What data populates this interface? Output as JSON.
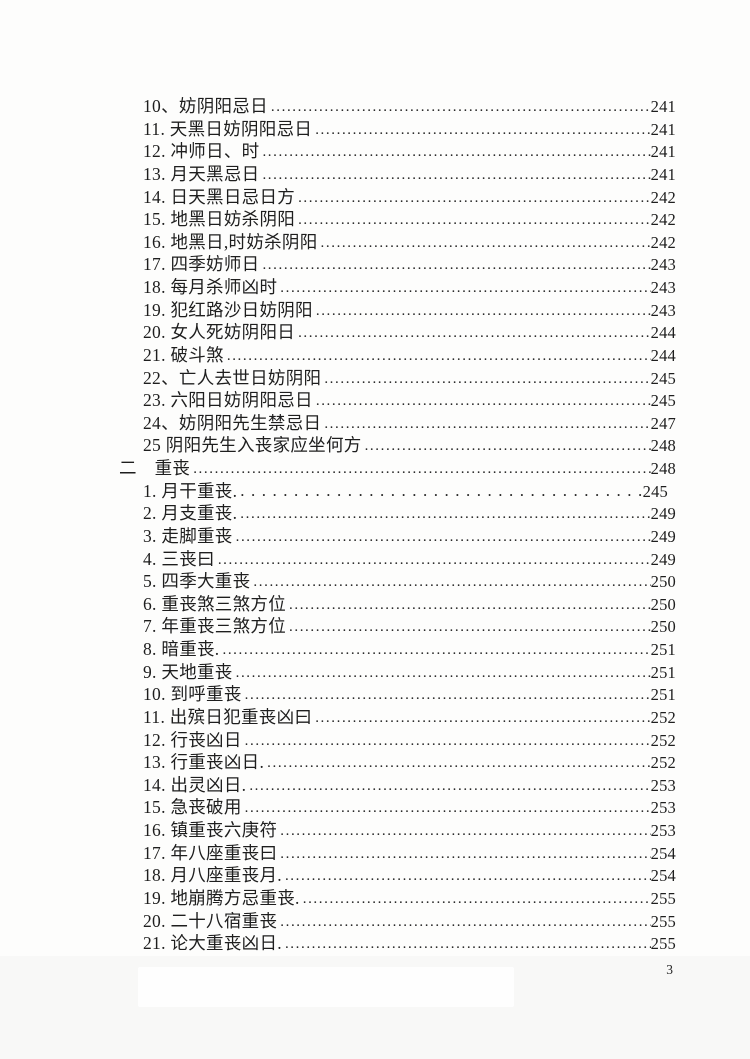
{
  "footer": {
    "page_number": "3"
  },
  "colors": {
    "text": "#1e1e1e",
    "page_bg": "#fdfdfc"
  },
  "toc": {
    "rows": [
      {
        "label": "10、妨阴阳忌日",
        "page": "241",
        "indent": 1,
        "leader": "dense"
      },
      {
        "label": "11. 天黑日妨阴阳忌日",
        "page": "241",
        "indent": 1,
        "leader": "dense"
      },
      {
        "label": "12. 冲师日、时",
        "page": "241",
        "indent": 1,
        "leader": "dense"
      },
      {
        "label": "13. 月天黑忌日",
        "page": "241",
        "indent": 1,
        "leader": "dense"
      },
      {
        "label": "14. 日天黑日忌日方",
        "page": "242",
        "indent": 1,
        "leader": "dense"
      },
      {
        "label": "15. 地黑日妨杀阴阳",
        "page": "242",
        "indent": 1,
        "leader": "dense"
      },
      {
        "label": "16. 地黑日,时妨杀阴阳",
        "page": "242",
        "indent": 1,
        "leader": "dense"
      },
      {
        "label": "17. 四季妨师日",
        "page": "243",
        "indent": 1,
        "leader": "dense"
      },
      {
        "label": "18. 每月杀师凶时",
        "page": "243",
        "indent": 1,
        "leader": "dense"
      },
      {
        "label": "19. 犯红路沙日妨阴阳",
        "page": "243",
        "indent": 1,
        "leader": "dense"
      },
      {
        "label": "20. 女人死妨阴阳日",
        "page": "244",
        "indent": 1,
        "leader": "dense"
      },
      {
        "label": "21. 破斗煞",
        "page": "244",
        "indent": 1,
        "leader": "dense"
      },
      {
        "label": "22、亡人去世日妨阴阳",
        "page": "245",
        "indent": 1,
        "leader": "dense"
      },
      {
        "label": "23. 六阳日妨阴阳忌日",
        "page": "245",
        "indent": 1,
        "leader": "dense"
      },
      {
        "label": "24、妨阴阳先生禁忌日",
        "page": "247",
        "indent": 1,
        "leader": "dense"
      },
      {
        "label": "25 阴阳先生入丧家应坐何方",
        "page": "248",
        "indent": 1,
        "leader": "dense"
      },
      {
        "label": "二　重丧",
        "page": "248",
        "indent": 0,
        "leader": "dense"
      },
      {
        "label": "1. 月干重丧.",
        "page": "245",
        "indent": 1,
        "leader": "sparse"
      },
      {
        "label": "2. 月支重丧.",
        "page": "249",
        "indent": 1,
        "leader": "dense"
      },
      {
        "label": "3. 走脚重丧",
        "page": "249",
        "indent": 1,
        "leader": "dense"
      },
      {
        "label": "4. 三丧曰",
        "page": "249",
        "indent": 1,
        "leader": "dense"
      },
      {
        "label": "5. 四季大重丧",
        "page": "250",
        "indent": 1,
        "leader": "dense"
      },
      {
        "label": "6. 重丧煞三煞方位",
        "page": "250",
        "indent": 1,
        "leader": "dense"
      },
      {
        "label": "7. 年重丧三煞方位",
        "page": "250",
        "indent": 1,
        "leader": "dense"
      },
      {
        "label": "8. 暗重丧.",
        "page": "251",
        "indent": 1,
        "leader": "dense"
      },
      {
        "label": "9. 天地重丧",
        "page": "251",
        "indent": 1,
        "leader": "dense"
      },
      {
        "label": "10. 到呼重丧",
        "page": "251",
        "indent": 1,
        "leader": "dense"
      },
      {
        "label": "11. 出殡日犯重丧凶曰",
        "page": "252",
        "indent": 1,
        "leader": "dense"
      },
      {
        "label": "12. 行丧凶日",
        "page": "252",
        "indent": 1,
        "leader": "dense"
      },
      {
        "label": "13. 行重丧凶日.",
        "page": "252",
        "indent": 1,
        "leader": "dense"
      },
      {
        "label": "14. 出灵凶日.",
        "page": "253",
        "indent": 1,
        "leader": "dense"
      },
      {
        "label": "15. 急丧破用",
        "page": "253",
        "indent": 1,
        "leader": "dense"
      },
      {
        "label": "16. 镇重丧六庚符",
        "page": "253",
        "indent": 1,
        "leader": "dense"
      },
      {
        "label": "17. 年八座重丧曰",
        "page": "254",
        "indent": 1,
        "leader": "dense"
      },
      {
        "label": "18. 月八座重丧月.",
        "page": "254",
        "indent": 1,
        "leader": "dense"
      },
      {
        "label": "19. 地崩腾方忌重丧.",
        "page": "255",
        "indent": 1,
        "leader": "dense"
      },
      {
        "label": "20. 二十八宿重丧",
        "page": "255",
        "indent": 1,
        "leader": "dense"
      },
      {
        "label": "21. 论大重丧凶日.",
        "page": "255",
        "indent": 1,
        "leader": "dense"
      }
    ]
  }
}
